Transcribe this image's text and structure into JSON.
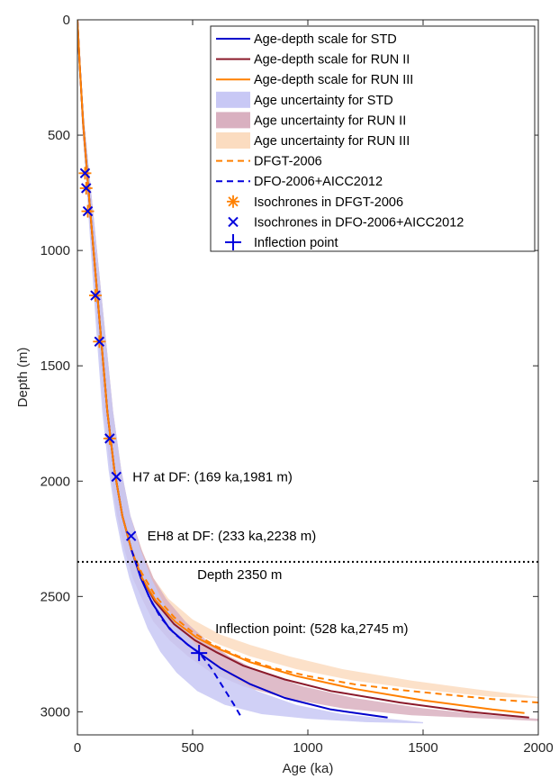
{
  "chart_data": {
    "type": "line",
    "xlabel": "Age (ka)",
    "ylabel": "Depth (m)",
    "xlim": [
      0,
      2000
    ],
    "ylim": [
      0,
      3100
    ],
    "y_reversed": true,
    "x_ticks": [
      0,
      500,
      1000,
      1500,
      2000
    ],
    "y_ticks": [
      0,
      500,
      1000,
      1500,
      2000,
      2500,
      3000
    ],
    "grid": false,
    "legend_position": "top-right",
    "colors": {
      "std": "#0000cc",
      "run2": "#8b1a2b",
      "run3": "#ff8000",
      "std_band": "#c8c8f5",
      "run2_band": "#d9b0c0",
      "run3_band": "#fbdcc0",
      "dfgt": "#ff8000",
      "dfo": "#0000dd"
    },
    "series": [
      {
        "name": "Age-depth scale for STD",
        "style": "solid",
        "color": "std",
        "x": [
          0,
          10,
          25,
          45,
          70,
          100,
          130,
          160,
          195,
          235,
          275,
          325,
          400,
          480,
          528,
          620,
          750,
          900,
          1100,
          1346
        ],
        "y": [
          0,
          200,
          450,
          700,
          1000,
          1350,
          1700,
          1950,
          2150,
          2300,
          2420,
          2530,
          2640,
          2710,
          2745,
          2810,
          2880,
          2940,
          2990,
          3025
        ]
      },
      {
        "name": "Age-depth scale for RUN II",
        "style": "solid",
        "color": "run2",
        "x": [
          0,
          10,
          25,
          45,
          70,
          100,
          130,
          160,
          195,
          235,
          280,
          335,
          420,
          510,
          600,
          720,
          900,
          1100,
          1400,
          1700,
          1960
        ],
        "y": [
          0,
          200,
          450,
          700,
          1000,
          1350,
          1700,
          1950,
          2150,
          2300,
          2420,
          2520,
          2620,
          2690,
          2740,
          2800,
          2860,
          2910,
          2960,
          3000,
          3025
        ]
      },
      {
        "name": "Age-depth scale for RUN III",
        "style": "solid",
        "color": "run3",
        "x": [
          0,
          10,
          25,
          45,
          70,
          100,
          130,
          160,
          195,
          235,
          280,
          338,
          425,
          520,
          620,
          750,
          950,
          1200,
          1500,
          1800,
          1940
        ],
        "y": [
          0,
          200,
          450,
          700,
          1000,
          1350,
          1700,
          1950,
          2150,
          2300,
          2420,
          2515,
          2610,
          2680,
          2730,
          2785,
          2845,
          2900,
          2950,
          2990,
          3005
        ]
      },
      {
        "name": "Age uncertainty for STD",
        "style": "band",
        "color": "std_band"
      },
      {
        "name": "Age uncertainty for RUN II",
        "style": "band",
        "color": "run2_band"
      },
      {
        "name": "Age uncertainty for RUN III",
        "style": "band",
        "color": "run3_band"
      },
      {
        "name": "DFGT-2006",
        "style": "dashed",
        "color": "dfgt",
        "x": [
          235,
          280,
          340,
          420,
          500,
          600,
          700,
          850,
          1000,
          1200,
          1400,
          1600,
          1800,
          2000
        ],
        "y": [
          2300,
          2400,
          2500,
          2590,
          2655,
          2715,
          2760,
          2810,
          2845,
          2880,
          2905,
          2925,
          2945,
          2960
        ]
      },
      {
        "name": "DFO-2006+AICC2012",
        "style": "dashed",
        "color": "dfo",
        "x": [
          235,
          270,
          310,
          360,
          420,
          480,
          530,
          580,
          630,
          680,
          715
        ],
        "y": [
          2300,
          2400,
          2500,
          2590,
          2660,
          2710,
          2745,
          2810,
          2890,
          2970,
          3030
        ]
      },
      {
        "name": "Isochrones in DFGT-2006",
        "style": "asterisk",
        "color": "dfgt",
        "x": [
          33,
          38,
          45,
          78,
          95,
          140
        ],
        "y": [
          665,
          730,
          830,
          1195,
          1395,
          1815
        ]
      },
      {
        "name": "Isochrones in DFO-2006+AICC2012",
        "style": "x",
        "color": "dfo",
        "x": [
          33,
          38,
          45,
          78,
          95,
          140,
          169,
          233
        ],
        "y": [
          665,
          730,
          830,
          1195,
          1395,
          1815,
          1981,
          2238
        ]
      },
      {
        "name": "Inflection point",
        "style": "plus",
        "color": "dfo",
        "x": [
          528
        ],
        "y": [
          2745
        ]
      }
    ],
    "bands": [
      {
        "name": "Age uncertainty for RUN III",
        "color": "run3_band",
        "left_x": [
          0,
          10,
          25,
          45,
          70,
          100,
          130,
          160,
          195,
          235,
          280,
          338,
          425,
          520,
          620,
          750,
          950,
          1200,
          1500,
          1800,
          2000
        ],
        "right_x": [
          0,
          12,
          30,
          55,
          85,
          120,
          155,
          190,
          230,
          280,
          330,
          395,
          500,
          620,
          750,
          920,
          1150,
          1450,
          1750,
          2000,
          2000
        ],
        "y": [
          0,
          200,
          450,
          700,
          1000,
          1350,
          1700,
          1950,
          2150,
          2300,
          2420,
          2510,
          2600,
          2665,
          2710,
          2760,
          2815,
          2865,
          2905,
          2935,
          2940
        ]
      },
      {
        "name": "Age uncertainty for RUN II",
        "color": "run2_band",
        "left_x": [
          0,
          8,
          20,
          40,
          62,
          88,
          115,
          142,
          172,
          205,
          240,
          280,
          330,
          400,
          480,
          580,
          720,
          900,
          1150,
          1450,
          1800,
          2000
        ],
        "right_x": [
          0,
          12,
          30,
          55,
          85,
          120,
          155,
          190,
          230,
          280,
          330,
          385,
          470,
          560,
          660,
          800,
          980,
          1200,
          1500,
          1800,
          2000,
          2000
        ],
        "y": [
          0,
          200,
          450,
          700,
          1000,
          1350,
          1700,
          1950,
          2150,
          2300,
          2420,
          2510,
          2610,
          2690,
          2760,
          2830,
          2890,
          2940,
          2985,
          3015,
          3030,
          3040
        ]
      },
      {
        "name": "Age uncertainty for STD",
        "color": "std_band",
        "left_x": [
          0,
          8,
          20,
          38,
          58,
          82,
          108,
          135,
          165,
          195,
          225,
          262,
          305,
          360,
          430,
          520,
          640,
          800,
          1000,
          1250,
          1500
        ],
        "right_x": [
          0,
          12,
          30,
          55,
          85,
          120,
          155,
          190,
          230,
          275,
          320,
          375,
          450,
          540,
          640,
          780,
          950,
          1150,
          1350,
          1500,
          1500
        ],
        "y": [
          0,
          200,
          450,
          700,
          1000,
          1350,
          1700,
          1950,
          2150,
          2300,
          2420,
          2530,
          2640,
          2740,
          2830,
          2910,
          2970,
          3010,
          3030,
          3045,
          3050
        ]
      }
    ],
    "reference_line": {
      "y": 2350,
      "style": "dotted",
      "label": "Depth 2350 m"
    },
    "annotations": [
      {
        "text": "H7 at DF: (169 ka,1981 m)",
        "x": 169,
        "y": 1981
      },
      {
        "text": "EH8 at DF: (233 ka,2238 m)",
        "x": 233,
        "y": 2238
      },
      {
        "text": "Inflection point: (528 ka,2745 m)",
        "x": 528,
        "y": 2745
      }
    ]
  }
}
